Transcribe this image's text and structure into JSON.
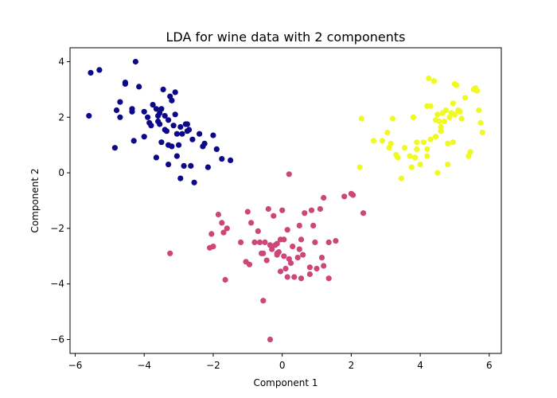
{
  "chart_data": {
    "type": "scatter",
    "title": "LDA for wine data with 2 components",
    "xlabel": "Component 1",
    "ylabel": "Component 2",
    "xlim": [
      -6.15,
      6.35
    ],
    "ylim": [
      -6.5,
      4.5
    ],
    "xticks": [
      -6,
      -4,
      -2,
      0,
      2,
      4,
      6
    ],
    "yticks": [
      -6,
      -4,
      -2,
      0,
      2,
      4
    ],
    "xtick_labels": [
      "−6",
      "−4",
      "−2",
      "0",
      "2",
      "4",
      "6"
    ],
    "ytick_labels": [
      "−6",
      "−4",
      "−2",
      "0",
      "2",
      "4"
    ],
    "grid": false,
    "series": [
      {
        "color": "#0d0887",
        "points": [
          [
            -5.6,
            2.05
          ],
          [
            -5.55,
            3.6
          ],
          [
            -5.3,
            3.7
          ],
          [
            -4.85,
            0.9
          ],
          [
            -4.8,
            2.25
          ],
          [
            -4.7,
            2.55
          ],
          [
            -4.7,
            2.0
          ],
          [
            -4.55,
            3.25
          ],
          [
            -4.55,
            3.2
          ],
          [
            -4.35,
            2.3
          ],
          [
            -4.35,
            2.2
          ],
          [
            -4.3,
            1.15
          ],
          [
            -4.25,
            4.0
          ],
          [
            -4.15,
            3.1
          ],
          [
            -4.0,
            2.2
          ],
          [
            -3.9,
            2.0
          ],
          [
            -3.85,
            1.8
          ],
          [
            -3.8,
            1.7
          ],
          [
            -3.75,
            2.45
          ],
          [
            -3.65,
            2.3
          ],
          [
            -3.6,
            2.05
          ],
          [
            -3.6,
            1.85
          ],
          [
            -3.55,
            1.75
          ],
          [
            -3.5,
            1.1
          ],
          [
            -3.5,
            2.3
          ],
          [
            -3.45,
            3.0
          ],
          [
            -3.4,
            2.05
          ],
          [
            -3.35,
            1.5
          ],
          [
            -3.3,
            1.9
          ],
          [
            -3.3,
            1.0
          ],
          [
            -3.25,
            2.75
          ],
          [
            -3.2,
            2.6
          ],
          [
            -3.15,
            1.7
          ],
          [
            -3.1,
            2.9
          ],
          [
            -3.1,
            2.1
          ],
          [
            -3.05,
            1.4
          ],
          [
            -3.0,
            1.0
          ],
          [
            -2.95,
            1.65
          ],
          [
            -2.9,
            1.4
          ],
          [
            -2.85,
            0.25
          ],
          [
            -2.8,
            1.75
          ],
          [
            -2.75,
            1.5
          ],
          [
            -2.7,
            1.55
          ],
          [
            -2.65,
            0.25
          ],
          [
            -2.6,
            1.2
          ],
          [
            -2.55,
            -0.35
          ],
          [
            -2.4,
            1.4
          ],
          [
            -2.3,
            0.95
          ],
          [
            -2.25,
            1.05
          ],
          [
            -2.15,
            0.2
          ],
          [
            -2.0,
            1.35
          ],
          [
            -1.9,
            0.85
          ],
          [
            -1.75,
            0.5
          ],
          [
            -1.5,
            0.45
          ],
          [
            -4.0,
            1.3
          ],
          [
            -3.65,
            0.55
          ],
          [
            -3.4,
            1.55
          ],
          [
            -3.3,
            0.3
          ],
          [
            -3.05,
            0.6
          ],
          [
            -2.95,
            -0.2
          ],
          [
            -3.2,
            0.95
          ],
          [
            -2.75,
            1.75
          ],
          [
            -3.55,
            2.15
          ]
        ]
      },
      {
        "color": "#cc4778",
        "points": [
          [
            -3.25,
            -2.9
          ],
          [
            -2.1,
            -2.7
          ],
          [
            -2.05,
            -2.2
          ],
          [
            -2.0,
            -2.65
          ],
          [
            -1.85,
            -1.5
          ],
          [
            -1.75,
            -1.8
          ],
          [
            -1.7,
            -2.15
          ],
          [
            -1.65,
            -3.85
          ],
          [
            -1.6,
            -2.0
          ],
          [
            -1.2,
            -2.5
          ],
          [
            -1.05,
            -3.2
          ],
          [
            -1.0,
            -1.4
          ],
          [
            -0.95,
            -3.3
          ],
          [
            -0.9,
            -1.8
          ],
          [
            -0.8,
            -2.5
          ],
          [
            -0.7,
            -2.1
          ],
          [
            -0.65,
            -2.5
          ],
          [
            -0.6,
            -2.9
          ],
          [
            -0.55,
            -2.9
          ],
          [
            -0.55,
            -4.6
          ],
          [
            -0.5,
            -2.5
          ],
          [
            -0.45,
            -3.15
          ],
          [
            -0.4,
            -1.3
          ],
          [
            -0.35,
            -2.6
          ],
          [
            -0.35,
            -6.0
          ],
          [
            -0.3,
            -2.75
          ],
          [
            -0.25,
            -1.55
          ],
          [
            -0.2,
            -2.6
          ],
          [
            -0.15,
            -2.9
          ],
          [
            -0.15,
            -2.95
          ],
          [
            -0.1,
            -2.85
          ],
          [
            -0.05,
            -3.55
          ],
          [
            0.0,
            -1.35
          ],
          [
            0.05,
            -2.4
          ],
          [
            0.1,
            -3.45
          ],
          [
            0.15,
            -3.75
          ],
          [
            0.15,
            -2.05
          ],
          [
            0.2,
            -3.1
          ],
          [
            0.2,
            -0.05
          ],
          [
            0.25,
            -3.25
          ],
          [
            0.3,
            -2.65
          ],
          [
            0.35,
            -3.75
          ],
          [
            0.45,
            -3.05
          ],
          [
            0.5,
            -2.75
          ],
          [
            0.5,
            -1.9
          ],
          [
            0.55,
            -3.8
          ],
          [
            0.55,
            -2.4
          ],
          [
            0.6,
            -2.95
          ],
          [
            0.65,
            -1.45
          ],
          [
            0.8,
            -3.4
          ],
          [
            0.8,
            -3.65
          ],
          [
            0.85,
            -1.35
          ],
          [
            0.9,
            -1.9
          ],
          [
            0.95,
            -2.5
          ],
          [
            1.0,
            -3.45
          ],
          [
            1.1,
            -1.3
          ],
          [
            1.15,
            -3.05
          ],
          [
            1.2,
            -3.35
          ],
          [
            1.2,
            -0.9
          ],
          [
            1.35,
            -2.5
          ],
          [
            1.35,
            -3.8
          ],
          [
            1.55,
            -2.45
          ],
          [
            1.8,
            -0.85
          ],
          [
            2.0,
            -0.75
          ],
          [
            2.05,
            -0.8
          ],
          [
            2.35,
            -1.45
          ],
          [
            -0.05,
            -2.4
          ],
          [
            0.05,
            -3.0
          ],
          [
            -0.15,
            -2.55
          ]
        ]
      },
      {
        "color": "#f0f921",
        "points": [
          [
            2.25,
            0.2
          ],
          [
            2.3,
            1.95
          ],
          [
            2.65,
            1.15
          ],
          [
            2.9,
            1.15
          ],
          [
            3.05,
            1.45
          ],
          [
            3.1,
            0.9
          ],
          [
            3.15,
            1.05
          ],
          [
            3.2,
            1.95
          ],
          [
            3.3,
            0.65
          ],
          [
            3.35,
            0.55
          ],
          [
            3.45,
            -0.2
          ],
          [
            3.55,
            0.9
          ],
          [
            3.7,
            0.6
          ],
          [
            3.75,
            0.2
          ],
          [
            3.8,
            2.0
          ],
          [
            3.85,
            0.55
          ],
          [
            3.9,
            0.85
          ],
          [
            4.0,
            0.3
          ],
          [
            4.1,
            1.1
          ],
          [
            4.2,
            0.85
          ],
          [
            4.2,
            2.4
          ],
          [
            4.25,
            3.4
          ],
          [
            4.3,
            2.4
          ],
          [
            4.4,
            3.3
          ],
          [
            4.45,
            1.3
          ],
          [
            4.45,
            1.9
          ],
          [
            4.5,
            2.1
          ],
          [
            4.5,
            0.0
          ],
          [
            4.55,
            1.85
          ],
          [
            4.6,
            1.65
          ],
          [
            4.65,
            2.15
          ],
          [
            4.7,
            1.85
          ],
          [
            4.75,
            2.25
          ],
          [
            4.8,
            1.05
          ],
          [
            4.8,
            0.3
          ],
          [
            4.85,
            2.0
          ],
          [
            4.9,
            2.15
          ],
          [
            4.95,
            2.5
          ],
          [
            4.95,
            1.1
          ],
          [
            5.0,
            3.2
          ],
          [
            5.0,
            2.1
          ],
          [
            5.05,
            3.15
          ],
          [
            5.1,
            2.25
          ],
          [
            5.15,
            2.2
          ],
          [
            5.2,
            1.95
          ],
          [
            5.3,
            2.7
          ],
          [
            5.4,
            0.6
          ],
          [
            5.45,
            0.75
          ],
          [
            5.55,
            3.0
          ],
          [
            5.6,
            3.05
          ],
          [
            5.65,
            2.95
          ],
          [
            5.7,
            2.25
          ],
          [
            5.75,
            1.8
          ],
          [
            5.8,
            1.45
          ],
          [
            3.9,
            1.1
          ],
          [
            4.3,
            1.2
          ],
          [
            4.6,
            1.5
          ],
          [
            4.2,
            0.6
          ]
        ]
      }
    ]
  }
}
